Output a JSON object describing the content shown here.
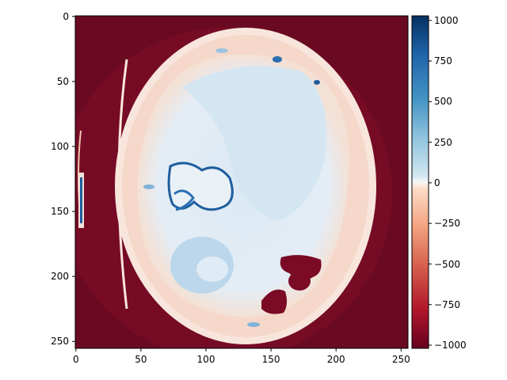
{
  "figure": {
    "image": {
      "content": "axial CT slice (abdomen) shown with diverging red-white-blue colormap",
      "x_range": [
        0,
        255
      ],
      "y_range": [
        0,
        255
      ],
      "x_ticks": [
        "0",
        "50",
        "100",
        "150",
        "200",
        "250"
      ],
      "y_ticks": [
        "0",
        "50",
        "100",
        "150",
        "200",
        "250"
      ]
    },
    "colorbar": {
      "range": [
        -1024,
        1024
      ],
      "ticks": [
        "1000",
        "750",
        "500",
        "250",
        "0",
        "−250",
        "−500",
        "−750",
        "−1000"
      ],
      "colors": {
        "low": "#67001f",
        "mid": "#f7f7f7",
        "high": "#053061"
      }
    },
    "colors": {
      "background": "#6a0a22",
      "air_inside": "#7a0a26",
      "fat": "#f6d8c8",
      "tissue": "#d8e8f4",
      "bone": "#1f5d9e",
      "bright_edge": "#fbeee6"
    }
  }
}
